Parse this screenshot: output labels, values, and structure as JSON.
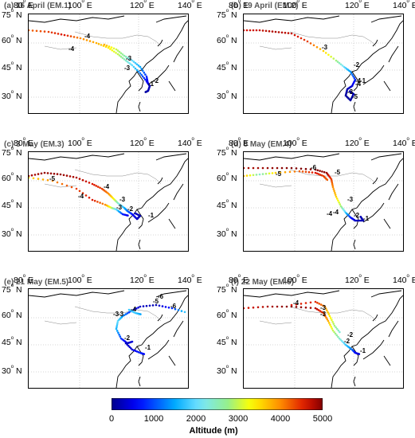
{
  "lon_labels": [
    "80",
    "100",
    "120",
    "140"
  ],
  "lon_suffix": "E",
  "lat_labels": [
    "75",
    "60",
    "45",
    "30"
  ],
  "lat_suffix": "N",
  "panels": [
    {
      "title": "(a) 16 April (EM.1)",
      "markers": [
        {
          "text": "1"
        },
        {
          "text": "2"
        },
        {
          "text": "3"
        },
        {
          "text": "3"
        },
        {
          "text": "4"
        },
        {
          "text": "4"
        }
      ]
    },
    {
      "title": "(b) 19 April (EM.2)",
      "markers": [
        {
          "text": "1"
        },
        {
          "text": "2"
        },
        {
          "text": "3"
        },
        {
          "text": "3"
        },
        {
          "text": "4"
        },
        {
          "text": "4"
        },
        {
          "text": "5"
        }
      ]
    },
    {
      "title": "(c) 3 May (EM.3)",
      "markers": [
        {
          "text": "1"
        },
        {
          "text": "2"
        },
        {
          "text": "3"
        },
        {
          "text": "3"
        },
        {
          "text": "4"
        },
        {
          "text": "4"
        },
        {
          "text": "5"
        }
      ]
    },
    {
      "title": "(d) 8 May (EM.4)",
      "markers": [
        {
          "text": "1"
        },
        {
          "text": "2"
        },
        {
          "text": "3"
        },
        {
          "text": "4"
        },
        {
          "text": "4"
        },
        {
          "text": "5"
        },
        {
          "text": "5"
        },
        {
          "text": "6"
        }
      ]
    },
    {
      "title": "(e) 21 May (EM.5)",
      "markers": [
        {
          "text": "1"
        },
        {
          "text": "2"
        },
        {
          "text": "3"
        },
        {
          "text": "3"
        },
        {
          "text": "4"
        },
        {
          "text": "5"
        },
        {
          "text": "6"
        },
        {
          "text": "6"
        }
      ]
    },
    {
      "title": "(f) 22 May (EM.6)",
      "markers": [
        {
          "text": "1"
        },
        {
          "text": "2"
        },
        {
          "text": "2"
        },
        {
          "text": "3"
        },
        {
          "text": "3"
        },
        {
          "text": "4"
        }
      ]
    }
  ],
  "colorbar": {
    "title": "Altitude (m)",
    "ticks": [
      "0",
      "1000",
      "2000",
      "3000",
      "4000",
      "5000"
    ],
    "range": [
      0,
      5000
    ]
  }
}
